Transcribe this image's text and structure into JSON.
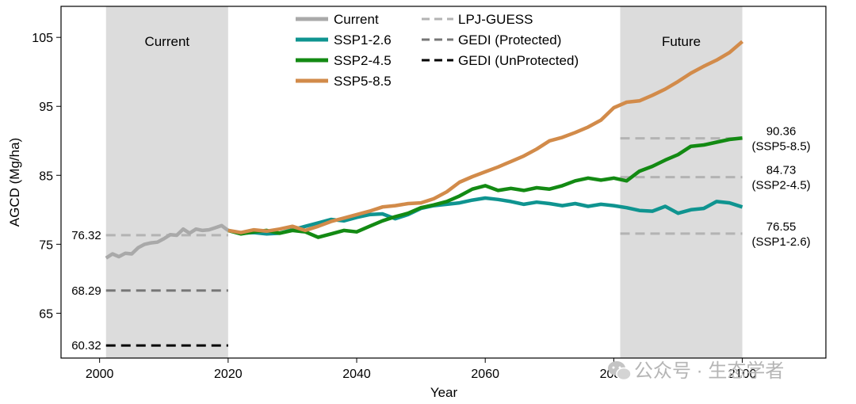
{
  "chart_data": {
    "type": "line",
    "xlabel": "Year",
    "ylabel": "AGCD (Mg/ha)",
    "xlim": [
      1994,
      2113
    ],
    "ylim": [
      58.5,
      109.5
    ],
    "xticks": [
      2000,
      2020,
      2040,
      2060,
      2080,
      2100
    ],
    "yticks": [
      65,
      75,
      85,
      95,
      105
    ],
    "shaded_regions": [
      {
        "name": "Current",
        "start": 2001,
        "end": 2020
      },
      {
        "name": "Future",
        "start": 2081,
        "end": 2100
      }
    ],
    "series": [
      {
        "name": "Current",
        "color": "#a9a9a9",
        "x": [
          2001,
          2002,
          2003,
          2004,
          2005,
          2006,
          2007,
          2008,
          2009,
          2010,
          2011,
          2012,
          2013,
          2014,
          2015,
          2016,
          2017,
          2018,
          2019,
          2020
        ],
        "y": [
          73.0,
          73.6,
          73.2,
          73.7,
          73.6,
          74.5,
          75.0,
          75.2,
          75.3,
          75.8,
          76.4,
          76.3,
          77.2,
          76.6,
          77.2,
          77.0,
          77.1,
          77.4,
          77.7,
          77.0
        ]
      },
      {
        "name": "SSP1-2.6",
        "color": "#0f9490",
        "x": [
          2020,
          2022,
          2024,
          2026,
          2028,
          2030,
          2032,
          2034,
          2036,
          2038,
          2040,
          2042,
          2044,
          2046,
          2048,
          2050,
          2052,
          2054,
          2056,
          2058,
          2060,
          2062,
          2064,
          2066,
          2068,
          2070,
          2072,
          2074,
          2076,
          2078,
          2080,
          2082,
          2084,
          2086,
          2088,
          2090,
          2092,
          2094,
          2096,
          2098,
          2100
        ],
        "y": [
          77.0,
          76.6,
          76.7,
          76.5,
          76.6,
          77.1,
          77.6,
          78.1,
          78.6,
          78.4,
          78.9,
          79.3,
          79.4,
          78.7,
          79.3,
          80.2,
          80.6,
          80.8,
          81.0,
          81.4,
          81.7,
          81.5,
          81.2,
          80.8,
          81.1,
          80.9,
          80.6,
          80.9,
          80.5,
          80.8,
          80.6,
          80.3,
          79.9,
          79.8,
          80.5,
          79.5,
          80.0,
          80.2,
          81.2,
          81.0,
          80.4
        ]
      },
      {
        "name": "SSP2-4.5",
        "color": "#138a13",
        "x": [
          2020,
          2022,
          2024,
          2026,
          2028,
          2030,
          2032,
          2034,
          2036,
          2038,
          2040,
          2042,
          2044,
          2046,
          2048,
          2050,
          2052,
          2054,
          2056,
          2058,
          2060,
          2062,
          2064,
          2066,
          2068,
          2070,
          2072,
          2074,
          2076,
          2078,
          2080,
          2082,
          2084,
          2086,
          2088,
          2090,
          2092,
          2094,
          2096,
          2098,
          2100
        ],
        "y": [
          77.0,
          76.5,
          76.8,
          77.0,
          76.6,
          77.0,
          76.8,
          76.0,
          76.5,
          77.0,
          76.8,
          77.6,
          78.4,
          79.0,
          79.5,
          80.3,
          80.7,
          81.2,
          82.0,
          83.0,
          83.5,
          82.8,
          83.1,
          82.8,
          83.2,
          83.0,
          83.5,
          84.2,
          84.6,
          84.3,
          84.6,
          84.2,
          85.6,
          86.3,
          87.2,
          88.0,
          89.2,
          89.4,
          89.8,
          90.2,
          90.4
        ]
      },
      {
        "name": "SSP5-8.5",
        "color": "#d28b4a",
        "x": [
          2020,
          2022,
          2024,
          2026,
          2028,
          2030,
          2032,
          2034,
          2036,
          2038,
          2040,
          2042,
          2044,
          2046,
          2048,
          2050,
          2052,
          2054,
          2056,
          2058,
          2060,
          2062,
          2064,
          2066,
          2068,
          2070,
          2072,
          2074,
          2076,
          2078,
          2080,
          2082,
          2084,
          2086,
          2088,
          2090,
          2092,
          2094,
          2096,
          2098,
          2100
        ],
        "y": [
          77.0,
          76.7,
          77.1,
          76.9,
          77.2,
          77.6,
          77.0,
          77.6,
          78.3,
          78.8,
          79.3,
          79.8,
          80.4,
          80.6,
          80.9,
          81.0,
          81.6,
          82.6,
          84.0,
          84.8,
          85.5,
          86.2,
          87.0,
          87.8,
          88.8,
          90.0,
          90.5,
          91.2,
          92.0,
          93.0,
          94.8,
          95.6,
          95.8,
          96.6,
          97.5,
          98.6,
          99.8,
          100.8,
          101.7,
          102.8,
          104.4
        ]
      }
    ],
    "reference_lines": [
      {
        "name": "LPJ-GUESS current",
        "style": "LPJ-GUESS",
        "value": 76.32,
        "start": 2001,
        "end": 2020,
        "label": "76.32"
      },
      {
        "name": "GEDI protected",
        "style": "GEDI (Protected)",
        "value": 68.29,
        "start": 2001,
        "end": 2020,
        "label": "68.29"
      },
      {
        "name": "GEDI unprotected",
        "style": "GEDI (UnProtected)",
        "value": 60.32,
        "start": 2001,
        "end": 2020,
        "label": "60.32"
      },
      {
        "name": "LPJ-GUESS SSP5-8.5",
        "style": "LPJ-GUESS",
        "value": 90.36,
        "start": 2081,
        "end": 2100,
        "label": "90.36",
        "sublabel": "(SSP5-8.5)"
      },
      {
        "name": "LPJ-GUESS SSP2-4.5",
        "style": "LPJ-GUESS",
        "value": 84.73,
        "start": 2081,
        "end": 2100,
        "label": "84.73",
        "sublabel": "(SSP2-4.5)"
      },
      {
        "name": "LPJ-GUESS SSP1-2.6",
        "style": "LPJ-GUESS",
        "value": 76.55,
        "start": 2081,
        "end": 2100,
        "label": "76.55",
        "sublabel": "(SSP1-2.6)"
      }
    ],
    "line_styles": {
      "LPJ-GUESS": {
        "color": "#b3b3b3"
      },
      "GEDI (Protected)": {
        "color": "#777777"
      },
      "GEDI (UnProtected)": {
        "color": "#000000"
      }
    },
    "legend": {
      "placement": "top-center",
      "solid": [
        "Current",
        "SSP1-2.6",
        "SSP2-4.5",
        "SSP5-8.5"
      ],
      "dashed": [
        "LPJ-GUESS",
        "GEDI (Protected)",
        "GEDI (UnProtected)"
      ]
    }
  },
  "watermark": {
    "text": "公众号 · 生态学者",
    "icon": "wechat-icon"
  }
}
